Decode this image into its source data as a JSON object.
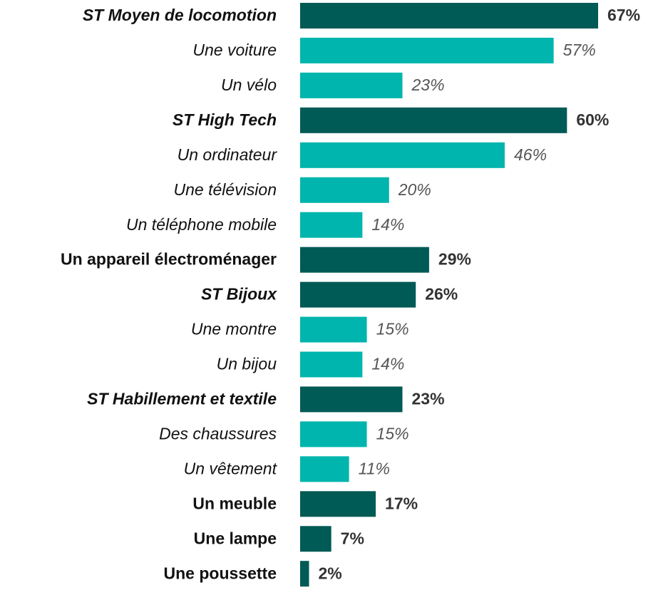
{
  "chart_data": {
    "type": "bar",
    "orientation": "horizontal",
    "categories": [
      "ST Moyen de locomotion",
      "Une voiture",
      "Un vélo",
      "ST High Tech",
      "Un ordinateur",
      "Une télévision",
      "Un téléphone mobile",
      "Un appareil électroménager",
      "ST Bijoux",
      "Une montre",
      "Un bijou",
      "ST Habillement et textile",
      "Des chaussures",
      "Un vêtement",
      "Un meuble",
      "Une lampe",
      "Une poussette"
    ],
    "values": [
      67,
      57,
      23,
      60,
      46,
      20,
      14,
      29,
      26,
      15,
      14,
      23,
      15,
      11,
      17,
      7,
      2
    ],
    "value_labels": [
      "67%",
      "57%",
      "23%",
      "60%",
      "46%",
      "20%",
      "14%",
      "29%",
      "26%",
      "15%",
      "14%",
      "23%",
      "15%",
      "11%",
      "17%",
      "7%",
      "2%"
    ],
    "colors": [
      "#005a55",
      "#00b5ad",
      "#00b5ad",
      "#005a55",
      "#00b5ad",
      "#00b5ad",
      "#00b5ad",
      "#005a55",
      "#005a55",
      "#00b5ad",
      "#00b5ad",
      "#005a55",
      "#00b5ad",
      "#00b5ad",
      "#005a55",
      "#005a55",
      "#005a55"
    ],
    "label_styles": [
      "bold-italic",
      "italic",
      "italic",
      "bold-italic",
      "italic",
      "italic",
      "italic",
      "bold",
      "bold-italic",
      "italic",
      "italic",
      "bold-italic",
      "italic",
      "italic",
      "bold",
      "bold",
      "bold"
    ]
  }
}
